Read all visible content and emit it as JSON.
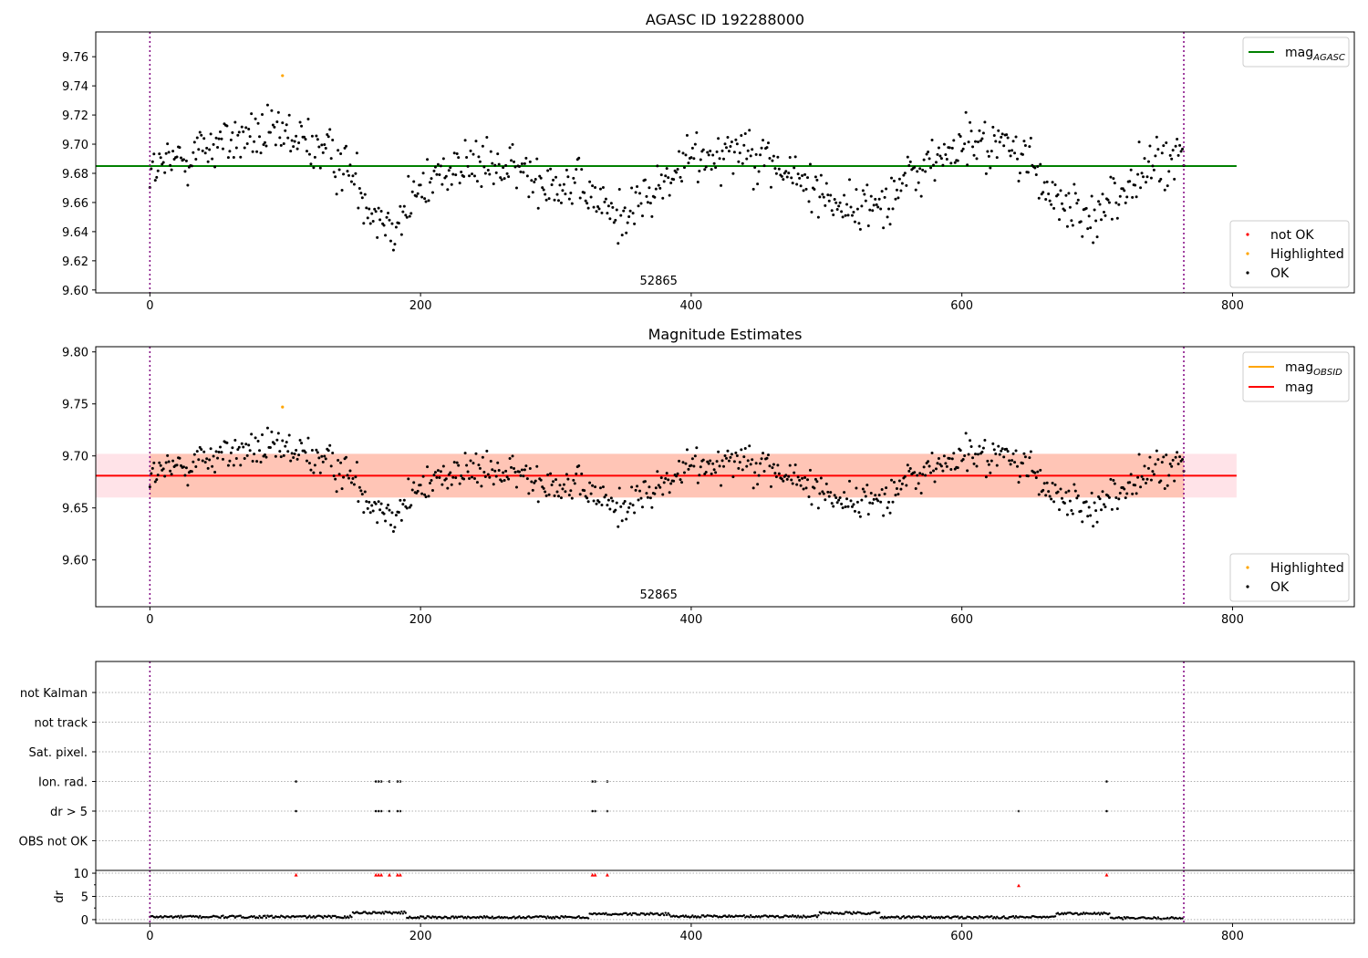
{
  "chart_data": [
    {
      "type": "scatter",
      "title": "AGASC ID 192288000",
      "xlim": [
        -40,
        890
      ],
      "ylim": [
        9.598,
        9.777
      ],
      "xticks": [
        0,
        200,
        400,
        600,
        800
      ],
      "yticks": [
        9.6,
        9.62,
        9.64,
        9.66,
        9.68,
        9.7,
        9.72,
        9.74,
        9.76
      ],
      "yprec": 2,
      "obsid_label": {
        "text": "52865",
        "x": 380
      },
      "vlines": [
        0,
        764
      ],
      "hline": {
        "name": "mag_AGASC",
        "base": "mag",
        "sub": "AGASC",
        "y": 9.685,
        "x": [
          -40,
          803
        ],
        "color": "#008000"
      },
      "band": null,
      "legend_lines": [
        {
          "base": "mag",
          "sub": "AGASC",
          "color": "#008000"
        }
      ],
      "legend_points": [
        {
          "label": "not OK",
          "color": "#ff0000"
        },
        {
          "label": "Highlighted",
          "color": "#ffa500"
        },
        {
          "label": "OK",
          "color": "#000000"
        }
      ],
      "highlighted": [
        {
          "x": 98,
          "y": 9.747
        }
      ],
      "n_points": 765,
      "noise": 0.012,
      "trend": [
        [
          0,
          9.68
        ],
        [
          40,
          9.698
        ],
        [
          70,
          9.705
        ],
        [
          100,
          9.705
        ],
        [
          120,
          9.7
        ],
        [
          145,
          9.685
        ],
        [
          165,
          9.655
        ],
        [
          180,
          9.645
        ],
        [
          200,
          9.668
        ],
        [
          220,
          9.685
        ],
        [
          245,
          9.685
        ],
        [
          270,
          9.682
        ],
        [
          300,
          9.675
        ],
        [
          325,
          9.665
        ],
        [
          345,
          9.65
        ],
        [
          370,
          9.665
        ],
        [
          400,
          9.69
        ],
        [
          440,
          9.7
        ],
        [
          470,
          9.68
        ],
        [
          500,
          9.665
        ],
        [
          520,
          9.655
        ],
        [
          540,
          9.66
        ],
        [
          565,
          9.68
        ],
        [
          600,
          9.7
        ],
        [
          630,
          9.7
        ],
        [
          650,
          9.69
        ],
        [
          665,
          9.662
        ],
        [
          690,
          9.65
        ],
        [
          710,
          9.66
        ],
        [
          740,
          9.685
        ],
        [
          764,
          9.69
        ]
      ]
    },
    {
      "type": "scatter",
      "title": "Magnitude Estimates",
      "xlim": [
        -40,
        890
      ],
      "ylim": [
        9.555,
        9.805
      ],
      "xticks": [
        0,
        200,
        400,
        600,
        800
      ],
      "yticks": [
        9.6,
        9.65,
        9.7,
        9.75,
        9.8
      ],
      "yprec": 2,
      "obsid_label": {
        "text": "52865",
        "x": 380
      },
      "vlines": [
        0,
        764
      ],
      "hline": {
        "name": "mag",
        "y": 9.681,
        "x": [
          -40,
          803
        ],
        "color": "#ff0000"
      },
      "band": {
        "y1": 9.66,
        "y2": 9.702,
        "x": [
          -40,
          803
        ],
        "color": "#ffc0cb",
        "inner_x": [
          0,
          764
        ],
        "inner_color": "#ffa07a"
      },
      "legend_lines": [
        {
          "base": "mag",
          "sub": "OBSID",
          "color": "#ffa500"
        },
        {
          "base": "mag",
          "sub": "",
          "color": "#ff0000"
        }
      ],
      "legend_points": [
        {
          "label": "Highlighted",
          "color": "#ffa500"
        },
        {
          "label": "OK",
          "color": "#000000"
        }
      ],
      "highlighted": [
        {
          "x": 98,
          "y": 9.747
        }
      ],
      "n_points": 765,
      "noise": 0.012,
      "trend": [
        [
          0,
          9.68
        ],
        [
          40,
          9.698
        ],
        [
          70,
          9.705
        ],
        [
          100,
          9.705
        ],
        [
          120,
          9.7
        ],
        [
          145,
          9.685
        ],
        [
          165,
          9.655
        ],
        [
          180,
          9.645
        ],
        [
          200,
          9.668
        ],
        [
          220,
          9.685
        ],
        [
          245,
          9.685
        ],
        [
          270,
          9.682
        ],
        [
          300,
          9.675
        ],
        [
          325,
          9.665
        ],
        [
          345,
          9.65
        ],
        [
          370,
          9.665
        ],
        [
          400,
          9.69
        ],
        [
          440,
          9.7
        ],
        [
          470,
          9.68
        ],
        [
          500,
          9.665
        ],
        [
          520,
          9.655
        ],
        [
          540,
          9.66
        ],
        [
          565,
          9.68
        ],
        [
          600,
          9.7
        ],
        [
          630,
          9.7
        ],
        [
          650,
          9.69
        ],
        [
          665,
          9.662
        ],
        [
          690,
          9.65
        ],
        [
          710,
          9.66
        ],
        [
          740,
          9.685
        ],
        [
          764,
          9.69
        ]
      ]
    },
    {
      "type": "scatter",
      "title": "",
      "xlim": [
        -40,
        890
      ],
      "vlines": [
        0,
        764
      ],
      "flag_rows": [
        "not Kalman",
        "not track",
        "Sat. pixel.",
        "Ion. rad.",
        "dr > 5",
        "OBS not OK"
      ],
      "flag_points": [
        {
          "row": "Ion. rad.",
          "x": [
            108,
            167,
            169,
            171,
            177,
            183,
            185,
            327,
            329,
            338,
            707
          ]
        },
        {
          "row": "dr > 5",
          "x": [
            108,
            167,
            169,
            171,
            177,
            183,
            185,
            327,
            329,
            338,
            642,
            707
          ]
        }
      ]
    },
    {
      "type": "scatter",
      "title": "",
      "ylabel": "dr",
      "xlim": [
        -40,
        890
      ],
      "ylim": [
        -0.8,
        10.6
      ],
      "xticks": [
        0,
        200,
        400,
        600,
        800
      ],
      "yticks": [
        0,
        5,
        10
      ],
      "vlines": [
        0,
        764
      ],
      "segments": [
        {
          "x": [
            0,
            150
          ],
          "level": 0.6
        },
        {
          "x": [
            150,
            190
          ],
          "level": 1.5
        },
        {
          "x": [
            190,
            325
          ],
          "level": 0.5
        },
        {
          "x": [
            325,
            385
          ],
          "level": 1.2
        },
        {
          "x": [
            385,
            495
          ],
          "level": 0.7
        },
        {
          "x": [
            495,
            540
          ],
          "level": 1.4
        },
        {
          "x": [
            540,
            670
          ],
          "level": 0.5
        },
        {
          "x": [
            670,
            710
          ],
          "level": 1.3
        },
        {
          "x": [
            710,
            764
          ],
          "level": 0.3
        }
      ],
      "clipped": [
        {
          "x": 108,
          "y": 9.6
        },
        {
          "x": 167,
          "y": 9.6
        },
        {
          "x": 169,
          "y": 9.6
        },
        {
          "x": 171,
          "y": 9.6
        },
        {
          "x": 177,
          "y": 9.6
        },
        {
          "x": 183,
          "y": 9.6
        },
        {
          "x": 185,
          "y": 9.6
        },
        {
          "x": 327,
          "y": 9.6
        },
        {
          "x": 329,
          "y": 9.6
        },
        {
          "x": 338,
          "y": 9.6
        },
        {
          "x": 642,
          "y": 7.3
        },
        {
          "x": 707,
          "y": 9.6
        }
      ],
      "clip_color": "#ff0000"
    }
  ]
}
